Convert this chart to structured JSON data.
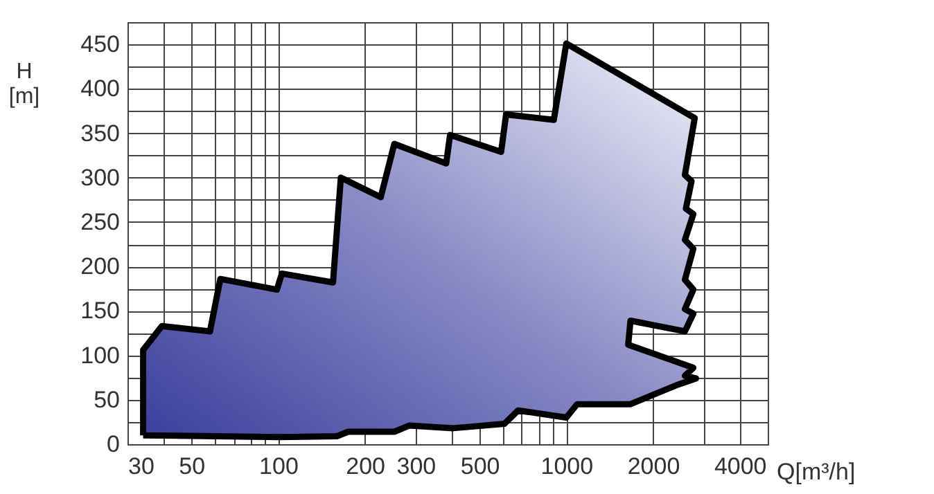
{
  "chart_data": {
    "type": "area",
    "xlabel": "Q[m³/h]",
    "ylabel": "H\n[m]",
    "log": "x",
    "xlim": [
      30,
      5000
    ],
    "ylim": [
      0,
      475
    ],
    "xticks": [
      30,
      {
        "value": 40,
        "label": null
      },
      50,
      {
        "value": 60,
        "label": null
      },
      {
        "value": 70,
        "label": null
      },
      {
        "value": 80,
        "label": null
      },
      {
        "value": 90,
        "label": null
      },
      100,
      200,
      300,
      {
        "value": 400,
        "label": null
      },
      500,
      {
        "value": 600,
        "label": null
      },
      {
        "value": 700,
        "label": null
      },
      {
        "value": 800,
        "label": null
      },
      {
        "value": 900,
        "label": null
      },
      1000,
      2000,
      {
        "value": 3000,
        "label": null
      },
      4000,
      {
        "value": 5000,
        "label": null
      }
    ],
    "yticks": [
      0,
      {
        "value": 25,
        "label": null
      },
      50,
      {
        "value": 75,
        "label": null
      },
      100,
      {
        "value": 125,
        "label": null
      },
      150,
      {
        "value": 175,
        "label": null
      },
      200,
      {
        "value": 225,
        "label": null
      },
      250,
      {
        "value": 275,
        "label": null
      },
      300,
      {
        "value": 325,
        "label": null
      },
      350,
      {
        "value": 375,
        "label": null
      },
      400,
      {
        "value": 425,
        "label": null
      },
      450,
      {
        "value": 475,
        "label": null
      }
    ],
    "grid": true,
    "marker": "none",
    "line_style": "solid",
    "series": [
      {
        "color": "#000000",
        "x": [
          34,
          34,
          39.5,
          58,
          63,
          99,
          103,
          155,
          165,
          227,
          253,
          383,
          395,
          594,
          618,
          905,
          1000,
          2790,
          2580,
          2720,
          2600,
          2760,
          2580,
          2760,
          2580,
          2760,
          2580,
          2760,
          2580,
          1670,
          1640,
          2760,
          2580,
          2820,
          2440,
          1670,
          1090,
          1000,
          680,
          610,
          405,
          285,
          253,
          175,
          160,
          101,
          34
        ],
        "values": [
          10,
          106,
          133,
          127,
          186,
          174,
          192,
          182,
          300,
          278,
          338,
          316,
          348,
          329,
          371,
          365,
          451,
          367,
          303,
          296,
          265,
          259,
          230,
          220,
          185,
          174,
          152,
          147,
          127,
          139,
          112,
          86,
          77,
          74,
          67,
          45,
          45,
          30,
          38,
          23,
          18,
          21,
          14,
          14,
          9,
          8,
          10
        ]
      }
    ]
  }
}
